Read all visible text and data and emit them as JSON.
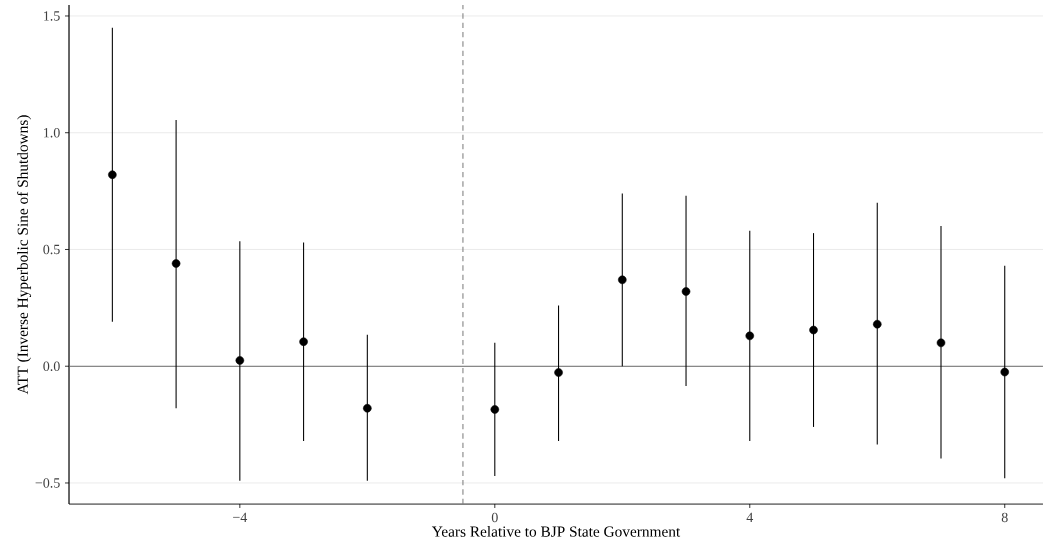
{
  "chart_data": {
    "type": "scatter",
    "xlabel": "Years Relative to BJP State Government",
    "ylabel": "ATT (Inverse Hyperbolic Sine of Shutdowns)",
    "x": [
      -6,
      -5,
      -4,
      -3,
      -2,
      0,
      1,
      2,
      3,
      4,
      5,
      6,
      7,
      8
    ],
    "values": [
      0.82,
      0.44,
      0.025,
      0.105,
      -0.18,
      -0.185,
      -0.027,
      0.37,
      0.32,
      0.13,
      0.155,
      0.18,
      0.1,
      -0.025
    ],
    "errors": [
      [
        0.19,
        1.45
      ],
      [
        -0.18,
        1.055
      ],
      [
        -0.49,
        0.535
      ],
      [
        -0.32,
        0.53
      ],
      [
        -0.49,
        0.135
      ],
      [
        -0.47,
        0.1
      ],
      [
        -0.32,
        0.26
      ],
      [
        0.0,
        0.74
      ],
      [
        -0.085,
        0.73
      ],
      [
        -0.32,
        0.58
      ],
      [
        -0.26,
        0.57
      ],
      [
        -0.335,
        0.7
      ],
      [
        -0.395,
        0.6
      ],
      [
        -0.48,
        0.43
      ]
    ],
    "color": "#000000",
    "marker": "circle",
    "xlim": [
      -6.68,
      8.6
    ],
    "ylim": [
      -0.59,
      1.547
    ],
    "xticks": [
      {
        "value": -4,
        "label": "−4"
      },
      0,
      4,
      8
    ],
    "yticks": [
      {
        "value": -0.5,
        "label": "−0.5"
      },
      {
        "value": 0,
        "label": "0.0"
      },
      0.5,
      {
        "value": 1,
        "label": "1.0"
      },
      1.5
    ],
    "grid": "y",
    "ref_lines": [
      {
        "axis": "x",
        "value": -0.5,
        "color": "#808080",
        "line_style": "dashed"
      },
      {
        "axis": "y",
        "value": 0,
        "color": "#666666",
        "line_style": "solid"
      }
    ]
  }
}
